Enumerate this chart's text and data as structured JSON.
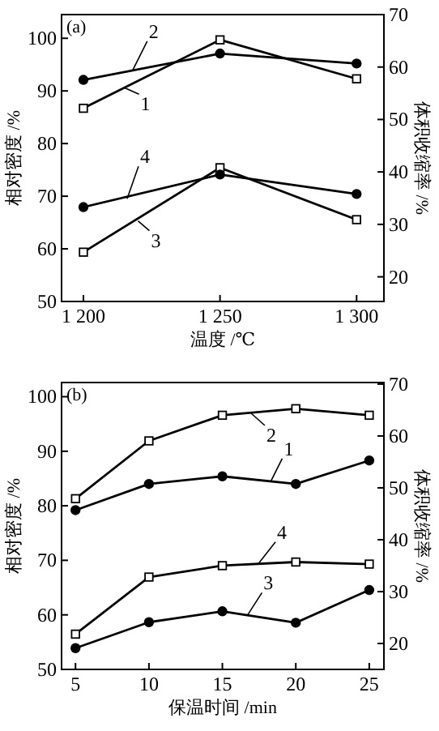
{
  "chart_data": [
    {
      "type": "line",
      "title": "(a)",
      "xlabel": "温度 /℃",
      "ylabel": "相对密度 /%",
      "y2label": "体积收缩率 /%",
      "x": [
        1200,
        1250,
        1300
      ],
      "xlim": [
        1192,
        1310
      ],
      "xticks": [
        {
          "value": 1200,
          "label": "1 200"
        },
        {
          "value": 1250,
          "label": "1 250"
        },
        {
          "value": 1300,
          "label": "1 300"
        }
      ],
      "ylim": [
        50,
        104.5
      ],
      "yticks": [
        50,
        60,
        70,
        80,
        90,
        100
      ],
      "y2lim": [
        15.3,
        70
      ],
      "y2ticks": [
        20,
        30,
        40,
        50,
        60,
        70
      ],
      "series": [
        {
          "color": "#000000",
          "marker": "square",
          "values": [
            86.7,
            99.7,
            92.3
          ]
        },
        {
          "color": "#000000",
          "marker": "circle",
          "values": [
            92.1,
            97.1,
            95.2
          ]
        },
        {
          "color": "#000000",
          "marker": "square",
          "axis": "y2",
          "values": [
            24.7,
            40.8,
            30.9
          ]
        },
        {
          "color": "#000000",
          "marker": "circle",
          "axis": "y2",
          "values": [
            33.3,
            39.5,
            35.8
          ]
        }
      ],
      "annotations": [
        {
          "text": "1",
          "x": 1215,
          "y": 90.6
        },
        {
          "text": "2",
          "x": 1218,
          "y": 93.9
        },
        {
          "text": "3",
          "x": 1220,
          "y": 65.3
        },
        {
          "text": "4",
          "x": 1216,
          "y": 69.5
        }
      ],
      "grid": false
    },
    {
      "type": "line",
      "title": "(b)",
      "xlabel": "保温时间 /min",
      "ylabel": "相对密度 /%",
      "y2label": "体积收缩率 /%",
      "x": [
        5,
        10,
        15,
        20,
        25
      ],
      "xlim": [
        4.05,
        26
      ],
      "xticks": [
        5,
        10,
        15,
        20,
        25
      ],
      "ylim": [
        50,
        102.6
      ],
      "yticks": [
        50,
        60,
        70,
        80,
        90,
        100
      ],
      "y2lim": [
        15,
        70.3
      ],
      "y2ticks": [
        20,
        30,
        40,
        50,
        60,
        70
      ],
      "series": [
        {
          "color": "#000000",
          "marker": "circle",
          "values": [
            79.2,
            84.0,
            85.4,
            84.0,
            88.3
          ]
        },
        {
          "color": "#000000",
          "marker": "square",
          "values": [
            81.3,
            91.9,
            96.6,
            97.8,
            96.6
          ]
        },
        {
          "color": "#000000",
          "marker": "circle",
          "axis": "y2",
          "values": [
            19.1,
            24.1,
            26.2,
            24.0,
            30.3
          ]
        },
        {
          "color": "#000000",
          "marker": "square",
          "axis": "y2",
          "values": [
            21.8,
            32.8,
            35.0,
            35.7,
            35.3
          ]
        }
      ],
      "annotations": [
        {
          "text": "1",
          "x": 18.3,
          "y": 84.5
        },
        {
          "text": "2",
          "x": 16.9,
          "y": 97.1
        },
        {
          "text": "3",
          "x": 16.7,
          "y": 59.9
        },
        {
          "text": "4",
          "x": 17.4,
          "y": 69.2
        }
      ],
      "grid": false
    }
  ]
}
